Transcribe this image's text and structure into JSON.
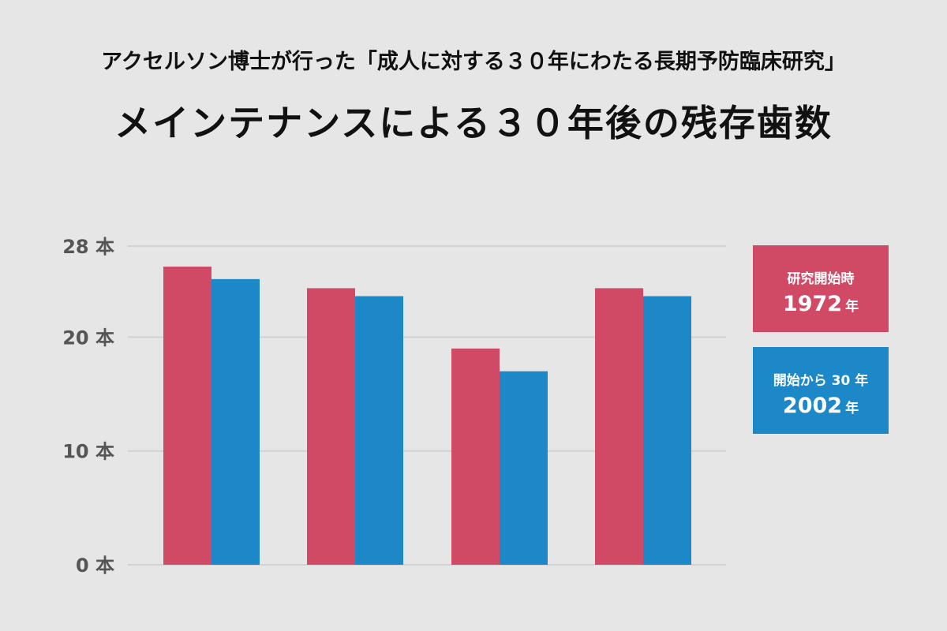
{
  "header": {
    "subtitle": "アクセルソン博士が行った「成人に対する３０年にわたる長期予防臨床研究」",
    "title": "メインテナンスによる３０年後の残存歯数"
  },
  "legend": {
    "series1": {
      "line1": "研究開始時",
      "year": "1972",
      "unit": "年"
    },
    "series2": {
      "line1": "開始から 30 年",
      "year": "2002",
      "unit": "年"
    }
  },
  "colors": {
    "series1": "#d04a66",
    "series2": "#1c88c8",
    "grid": "#d2d2d2",
    "tick_text": "#555555"
  },
  "chart_data": {
    "type": "bar",
    "title": "メインテナンスによる３０年後の残存歯数",
    "categories": [
      "",
      "",
      "",
      ""
    ],
    "series": [
      {
        "name": "研究開始時 1972 年",
        "values": [
          26.2,
          24.3,
          19.0,
          24.3
        ]
      },
      {
        "name": "開始から 30 年 2002 年",
        "values": [
          25.1,
          23.6,
          17.0,
          23.6
        ]
      }
    ],
    "yticks": [
      {
        "value": 0,
        "label": "0 本"
      },
      {
        "value": 10,
        "label": "10 本"
      },
      {
        "value": 20,
        "label": "20 本"
      },
      {
        "value": 28,
        "label": "28 本"
      }
    ],
    "ylim": [
      0,
      28
    ],
    "grid": true,
    "legend_position": "right"
  }
}
